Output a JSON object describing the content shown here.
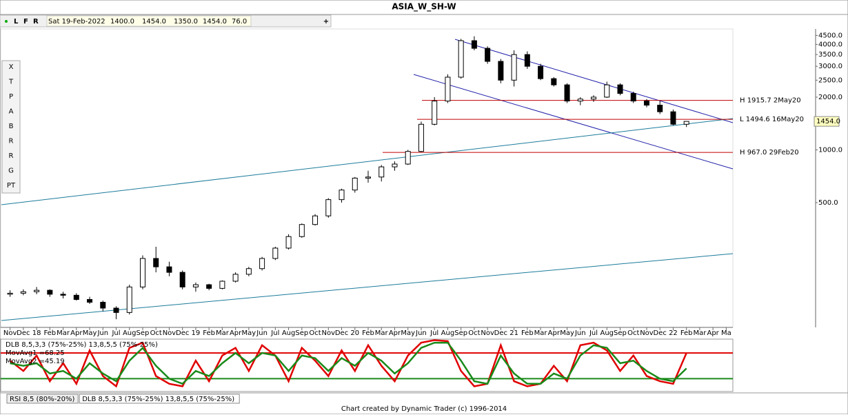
{
  "window": {
    "title": "ASIA_W_SH-W",
    "toolbar": [
      "L",
      "F",
      "R"
    ],
    "info": [
      "Sat 19-Feb-2022",
      "1400.0",
      "1454.0",
      "1350.0",
      "1454.0",
      "76.0"
    ],
    "tools": [
      "X",
      "T",
      "P",
      "A",
      "B",
      "R",
      "R",
      "G",
      "PT"
    ],
    "tabs": [
      "RSI 8,5 (80%-20%)",
      "DLB 8,5,3,3 (75%-25%) 13,8,5,5 (75%-25%)"
    ],
    "footer": "Chart created by Dynamic Trader  (c) 1996-2014"
  },
  "chart_data": [
    {
      "type": "candlestick",
      "log_scale": true,
      "categories": [
        "Nov",
        "Dec",
        "18",
        "Feb",
        "Mar",
        "Apr",
        "May",
        "Jun",
        "Jul",
        "Aug",
        "Sep",
        "Oct",
        "Nov",
        "Dec",
        "19",
        "Feb",
        "Mar",
        "Apr",
        "May",
        "Jun",
        "Jul",
        "Aug",
        "Sep",
        "Oct",
        "Nov",
        "Dec",
        "20",
        "Feb",
        "Mar",
        "Apr",
        "May",
        "Jun",
        "Jul",
        "Aug",
        "Sep",
        "Oct",
        "Nov",
        "Dec",
        "21",
        "Feb",
        "Mar",
        "Apr",
        "May",
        "Jun",
        "Jul",
        "Aug",
        "Sep",
        "Oct",
        "Nov",
        "Dec",
        "22",
        "Feb",
        "Mar",
        "Apr",
        "Ma"
      ],
      "open": [
        150,
        152,
        155,
        158,
        150,
        148,
        140,
        135,
        125,
        118,
        165,
        240,
        215,
        200,
        165,
        170,
        162,
        178,
        195,
        210,
        240,
        275,
        320,
        375,
        420,
        520,
        590,
        690,
        700,
        800,
        830,
        980,
        1400,
        1900,
        2600,
        4200,
        3800,
        3200,
        2500,
        3500,
        3000,
        2550,
        2350,
        1900,
        1950,
        2000,
        2350,
        2100,
        1900,
        1800,
        1650,
        1400,
        null,
        null,
        null
      ],
      "high": [
        158,
        160,
        165,
        160,
        155,
        152,
        145,
        138,
        128,
        170,
        250,
        280,
        230,
        205,
        175,
        172,
        180,
        200,
        215,
        245,
        280,
        330,
        380,
        430,
        530,
        600,
        700,
        760,
        820,
        860,
        1000,
        1450,
        2000,
        2700,
        4300,
        4450,
        3900,
        3300,
        3700,
        3650,
        3100,
        2600,
        2400,
        2000,
        2050,
        2450,
        2400,
        2150,
        1950,
        1900,
        1700,
        1454,
        null,
        null,
        null
      ],
      "low": [
        145,
        148,
        150,
        145,
        142,
        138,
        132,
        120,
        108,
        115,
        160,
        200,
        190,
        160,
        155,
        158,
        160,
        175,
        190,
        205,
        235,
        270,
        315,
        370,
        410,
        500,
        570,
        650,
        660,
        760,
        820,
        970,
        1380,
        1850,
        2550,
        3700,
        3100,
        2400,
        2300,
        2900,
        2500,
        2300,
        1850,
        1800,
        1880,
        1980,
        2050,
        1850,
        1750,
        1600,
        1380,
        1350,
        null,
        null,
        null
      ],
      "close": [
        152,
        155,
        158,
        150,
        148,
        140,
        135,
        125,
        118,
        165,
        240,
        215,
        200,
        165,
        170,
        162,
        178,
        195,
        210,
        240,
        275,
        320,
        375,
        420,
        520,
        590,
        690,
        700,
        800,
        830,
        980,
        1400,
        1900,
        2600,
        4200,
        3800,
        3200,
        2500,
        3500,
        3000,
        2550,
        2350,
        1900,
        1950,
        2000,
        2350,
        2100,
        1900,
        1800,
        1650,
        1400,
        1454,
        null,
        null,
        null
      ],
      "ylim": [
        97,
        4900
      ],
      "yticks": [
        {
          "value": 4500,
          "label": "4500.0"
        },
        {
          "value": 4000,
          "label": "4000.0"
        },
        {
          "value": 3500,
          "label": "3500.0"
        },
        {
          "value": 3000,
          "label": "3000.0"
        },
        {
          "value": 2500,
          "label": "2500.0"
        },
        {
          "value": 2000,
          "label": "2000.0"
        },
        {
          "value": 1000,
          "label": "1000.0"
        },
        {
          "value": 500,
          "label": "500.0"
        }
      ],
      "last_price": {
        "value": 1454,
        "label": "1454.0"
      },
      "annotations": [
        {
          "value": 1915.7,
          "label": "H 1915.7 2May20"
        },
        {
          "value": 1494.6,
          "label": "L 1494.6 16May20"
        },
        {
          "value": 967.0,
          "label": "H 967.0 29Feb20"
        }
      ]
    },
    {
      "type": "line",
      "legend": "DLB 8,5,3,3 (75%-25%) 13,8,5,5 (75%-25%)",
      "ylim": [
        0,
        102
      ],
      "levels": [
        75,
        25
      ],
      "series": [
        {
          "name": "MovAvg1 =",
          "current": 68.25,
          "color": "#e00000",
          "values": [
            60,
            40,
            70,
            20,
            55,
            15,
            80,
            30,
            10,
            85,
            95,
            30,
            15,
            10,
            60,
            20,
            70,
            85,
            40,
            90,
            70,
            20,
            85,
            60,
            30,
            80,
            40,
            90,
            50,
            20,
            70,
            95,
            100,
            98,
            40,
            10,
            15,
            90,
            20,
            10,
            15,
            50,
            20,
            90,
            95,
            80,
            40,
            70,
            30,
            20,
            15,
            75,
            null,
            null,
            null
          ]
        },
        {
          "name": "MovAvg2 =",
          "current": 45.19,
          "color": "#1a8a1a",
          "values": [
            55,
            50,
            55,
            35,
            40,
            25,
            55,
            35,
            20,
            60,
            85,
            50,
            25,
            15,
            40,
            30,
            55,
            75,
            55,
            75,
            70,
            40,
            70,
            65,
            40,
            65,
            50,
            75,
            60,
            35,
            55,
            85,
            95,
            95,
            60,
            20,
            15,
            70,
            35,
            15,
            15,
            35,
            25,
            70,
            90,
            85,
            55,
            60,
            40,
            25,
            20,
            45,
            null,
            null,
            null
          ]
        }
      ]
    }
  ]
}
